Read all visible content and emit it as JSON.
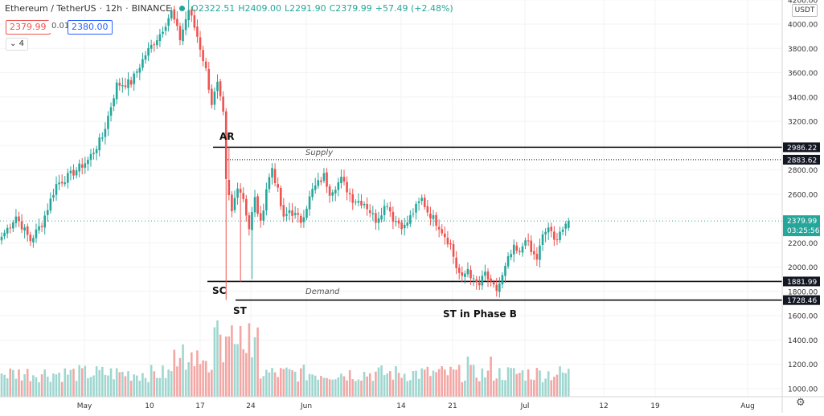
{
  "legend": {
    "symbol": "Ethereum / TetherUS",
    "interval": "12h",
    "exchange": "BINANCE",
    "open": "O2322.51",
    "high": "H2409.00",
    "low": "L2291.90",
    "close": "C2379.99",
    "change": "+57.49 (+2.48%)"
  },
  "trade": {
    "bid": "2379.99",
    "spread": "0.01",
    "ask": "2380.00"
  },
  "collapse_label": "4",
  "currency_label": "USDT",
  "colors": {
    "up": "#26a69a",
    "down": "#ef5350",
    "up_volume": "#9fd6cf",
    "down_volume": "#f3a7a5",
    "level_line": "#111111",
    "text": "#131722"
  },
  "chart_data": {
    "type": "candlestick",
    "y_ticks": [
      "4200.00",
      "4000.00",
      "3800.00",
      "3600.00",
      "3400.00",
      "3200.00",
      "3000.00",
      "2800.00",
      "2600.00",
      "2400.00",
      "2200.00",
      "2000.00",
      "1800.00",
      "1600.00",
      "1400.00",
      "1200.00",
      "1000.00"
    ],
    "x_ticks": [
      "May",
      "10",
      "17",
      "24",
      "Jun",
      "14",
      "21",
      "Jul",
      "12",
      "19",
      "Aug"
    ],
    "levels": [
      {
        "price": 2986.22,
        "label": "2986.22",
        "style": "solid"
      },
      {
        "price": 2883.62,
        "label": "2883.62",
        "style": "dotted"
      },
      {
        "price": 1881.99,
        "label": "1881.99",
        "style": "solid"
      },
      {
        "price": 1728.46,
        "label": "1728.46",
        "style": "solid"
      }
    ],
    "last_price": {
      "price": 2379.99,
      "label": "2379.99",
      "countdown": "03:25:56"
    },
    "annotations": [
      {
        "text": "AR",
        "style": "bold"
      },
      {
        "text": "Supply",
        "style": "italic"
      },
      {
        "text": "SC",
        "style": "bold"
      },
      {
        "text": "ST",
        "style": "bold"
      },
      {
        "text": "Demand",
        "style": "italic"
      },
      {
        "text": "ST in Phase B",
        "style": "bold"
      }
    ],
    "waypoints": [
      {
        "i": 0,
        "close": 2250
      },
      {
        "i": 5,
        "close": 2420
      },
      {
        "i": 10,
        "close": 2220
      },
      {
        "i": 14,
        "close": 2360
      },
      {
        "i": 19,
        "close": 2680
      },
      {
        "i": 24,
        "close": 2760
      },
      {
        "i": 30,
        "close": 2880
      },
      {
        "i": 35,
        "close": 3070
      },
      {
        "i": 40,
        "close": 3500
      },
      {
        "i": 45,
        "close": 3520
      },
      {
        "i": 50,
        "close": 3750
      },
      {
        "i": 55,
        "close": 3920
      },
      {
        "i": 59,
        "close": 4100
      },
      {
        "i": 62,
        "close": 3880
      },
      {
        "i": 65,
        "close": 4120
      },
      {
        "i": 68,
        "close": 3900
      },
      {
        "i": 71,
        "close": 3620
      },
      {
        "i": 73,
        "close": 3350
      },
      {
        "i": 75,
        "close": 3500
      },
      {
        "i": 77,
        "close": 3250
      },
      {
        "i": 78,
        "close": 2700
      },
      {
        "i": 80,
        "close": 2450
      },
      {
        "i": 82,
        "close": 2680
      },
      {
        "i": 84,
        "close": 2570
      },
      {
        "i": 86,
        "close": 2320
      },
      {
        "i": 88,
        "close": 2560
      },
      {
        "i": 90,
        "close": 2350
      },
      {
        "i": 92,
        "close": 2650
      },
      {
        "i": 94,
        "close": 2820
      },
      {
        "i": 96,
        "close": 2620
      },
      {
        "i": 98,
        "close": 2390
      },
      {
        "i": 100,
        "close": 2470
      },
      {
        "i": 104,
        "close": 2380
      },
      {
        "i": 108,
        "close": 2630
      },
      {
        "i": 112,
        "close": 2750
      },
      {
        "i": 114,
        "close": 2620
      },
      {
        "i": 118,
        "close": 2720
      },
      {
        "i": 122,
        "close": 2560
      },
      {
        "i": 126,
        "close": 2530
      },
      {
        "i": 130,
        "close": 2390
      },
      {
        "i": 134,
        "close": 2530
      },
      {
        "i": 136,
        "close": 2400
      },
      {
        "i": 140,
        "close": 2330
      },
      {
        "i": 144,
        "close": 2490
      },
      {
        "i": 146,
        "close": 2560
      },
      {
        "i": 148,
        "close": 2460
      },
      {
        "i": 152,
        "close": 2340
      },
      {
        "i": 156,
        "close": 2180
      },
      {
        "i": 158,
        "close": 2000
      },
      {
        "i": 160,
        "close": 1900
      },
      {
        "i": 162,
        "close": 1990
      },
      {
        "i": 164,
        "close": 1880
      },
      {
        "i": 166,
        "close": 1850
      },
      {
        "i": 168,
        "close": 1950
      },
      {
        "i": 170,
        "close": 1850
      },
      {
        "i": 172,
        "close": 1810
      },
      {
        "i": 174,
        "close": 1920
      },
      {
        "i": 176,
        "close": 2060
      },
      {
        "i": 178,
        "close": 2150
      },
      {
        "i": 180,
        "close": 2100
      },
      {
        "i": 182,
        "close": 2250
      },
      {
        "i": 184,
        "close": 2120
      },
      {
        "i": 186,
        "close": 2070
      },
      {
        "i": 188,
        "close": 2250
      },
      {
        "i": 190,
        "close": 2330
      },
      {
        "i": 192,
        "close": 2210
      },
      {
        "i": 194,
        "close": 2300
      },
      {
        "i": 196,
        "close": 2322.51
      },
      {
        "i": 197,
        "close": 2379.99
      }
    ],
    "lows": {
      "78": 1728.46,
      "83": 1880,
      "87": 1900
    },
    "highs": {
      "65": 4200,
      "79": 2986.22
    }
  }
}
